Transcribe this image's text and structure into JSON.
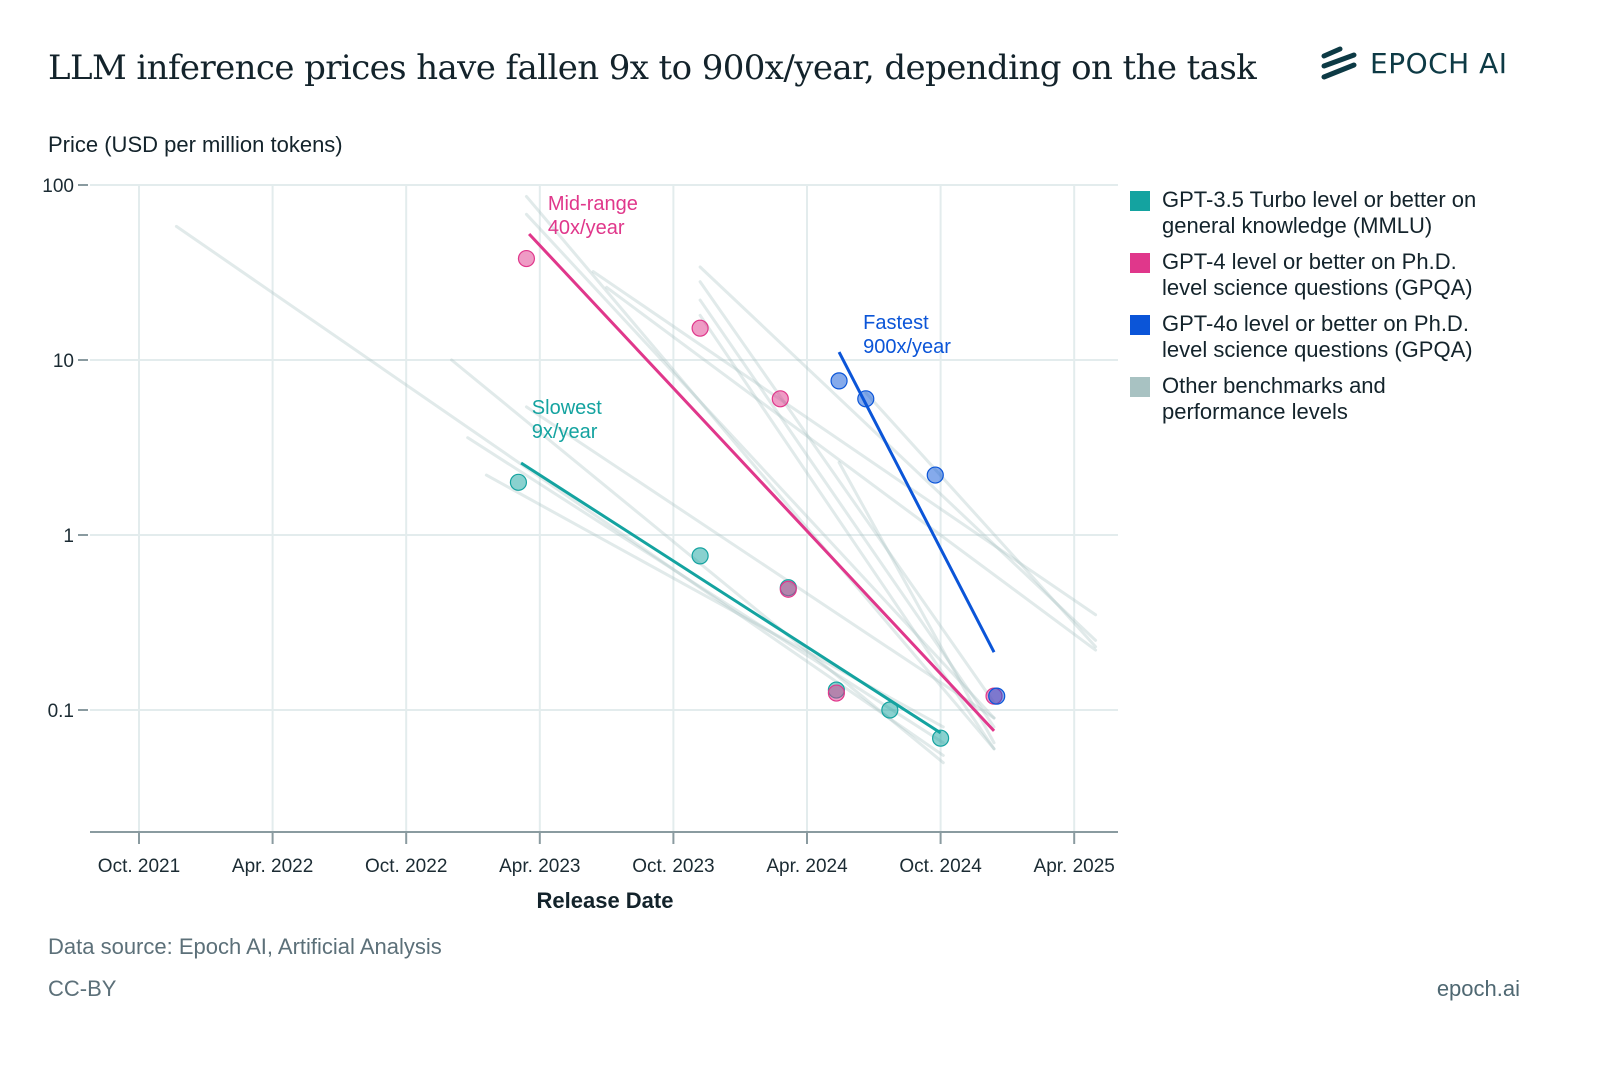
{
  "header": {
    "title": "LLM inference prices have fallen 9x to 900x/year, depending on the task",
    "logo_text": "EPOCH AI",
    "logo_icon": "epoch-slashes-icon"
  },
  "footer": {
    "source": "Data source: Epoch AI, Artificial Analysis",
    "license": "CC-BY",
    "site": "epoch.ai"
  },
  "colors": {
    "teal": "#14a3a0",
    "pink": "#e0378b",
    "blue": "#0b55d8",
    "gray": "#a8c2c2",
    "grid": "#e3eced",
    "axis": "#8a9ba0"
  },
  "chart_data": {
    "type": "scatter",
    "title": "LLM inference prices have fallen 9x to 900x/year, depending on the task",
    "xlabel": "Release Date",
    "ylabel": "Price (USD per million tokens)",
    "yscale": "log",
    "ylim": [
      0.02,
      100
    ],
    "xlim": [
      2021.57,
      2025.42
    ],
    "grid": true,
    "legend_position": "right",
    "x_ticks": [
      {
        "value": 2021.75,
        "label": "Oct. 2021"
      },
      {
        "value": 2022.25,
        "label": "Apr. 2022"
      },
      {
        "value": 2022.75,
        "label": "Oct. 2022"
      },
      {
        "value": 2023.25,
        "label": "Apr. 2023"
      },
      {
        "value": 2023.75,
        "label": "Oct. 2023"
      },
      {
        "value": 2024.25,
        "label": "Apr. 2024"
      },
      {
        "value": 2024.75,
        "label": "Oct. 2024"
      },
      {
        "value": 2025.25,
        "label": "Apr. 2025"
      }
    ],
    "y_ticks": [
      {
        "value": 100,
        "label": "100"
      },
      {
        "value": 10,
        "label": "10"
      },
      {
        "value": 1,
        "label": "1"
      },
      {
        "value": 0.1,
        "label": "0.1"
      }
    ],
    "series": [
      {
        "name": "GPT-3.5 Turbo level or better on general knowledge (MMLU)",
        "key": "teal",
        "color": "#14a3a0",
        "points": [
          {
            "x": 2023.17,
            "y": 2.0
          },
          {
            "x": 2023.85,
            "y": 0.76
          },
          {
            "x": 2024.18,
            "y": 0.5
          },
          {
            "x": 2024.36,
            "y": 0.13
          },
          {
            "x": 2024.56,
            "y": 0.1
          },
          {
            "x": 2024.75,
            "y": 0.069
          }
        ],
        "trend": {
          "x": [
            2023.18,
            2024.75
          ],
          "y": [
            2.58,
            0.074
          ]
        },
        "annotation": {
          "line1": "Slowest",
          "line2": "9x/year",
          "x": 2023.22,
          "y": 4.9
        }
      },
      {
        "name": "GPT-4 level or better on Ph.D. level science questions (GPQA)",
        "key": "pink",
        "color": "#e0378b",
        "points": [
          {
            "x": 2023.2,
            "y": 38
          },
          {
            "x": 2023.85,
            "y": 15.2
          },
          {
            "x": 2024.15,
            "y": 6.0
          },
          {
            "x": 2024.18,
            "y": 0.49
          },
          {
            "x": 2024.36,
            "y": 0.125
          },
          {
            "x": 2024.95,
            "y": 0.12
          }
        ],
        "trend": {
          "x": [
            2023.21,
            2024.95
          ],
          "y": [
            52.5,
            0.076
          ]
        },
        "annotation": {
          "line1": "Mid-range",
          "line2": "40x/year",
          "x": 2023.28,
          "y": 72
        }
      },
      {
        "name": "GPT-4o level or better on Ph.D. level science questions (GPQA)",
        "key": "blue",
        "color": "#0b55d8",
        "points": [
          {
            "x": 2024.37,
            "y": 7.6
          },
          {
            "x": 2024.47,
            "y": 6.0
          },
          {
            "x": 2024.73,
            "y": 2.2
          },
          {
            "x": 2024.96,
            "y": 0.12
          }
        ],
        "trend": {
          "x": [
            2024.37,
            2024.95
          ],
          "y": [
            11.1,
            0.214
          ]
        },
        "annotation": {
          "line1": "Fastest",
          "line2": "900x/year",
          "x": 2024.46,
          "y": 15
        }
      },
      {
        "name": "Other benchmarks and performance levels",
        "key": "gray",
        "color": "#a8c2c2",
        "points": [],
        "trends": [
          {
            "x": [
              2021.89,
              2024.76
            ],
            "y": [
              58,
              0.055
            ]
          },
          {
            "x": [
              2022.92,
              2024.76
            ],
            "y": [
              10,
              0.05
            ]
          },
          {
            "x": [
              2023.2,
              2024.95
            ],
            "y": [
              86,
              0.06
            ]
          },
          {
            "x": [
              2023.2,
              2024.95
            ],
            "y": [
              68,
              0.09
            ]
          },
          {
            "x": [
              2023.2,
              2024.95
            ],
            "y": [
              5.4,
              0.09
            ]
          },
          {
            "x": [
              2023.45,
              2025.33
            ],
            "y": [
              32,
              0.35
            ]
          },
          {
            "x": [
              2023.5,
              2025.33
            ],
            "y": [
              26,
              0.22
            ]
          },
          {
            "x": [
              2023.85,
              2025.33
            ],
            "y": [
              34,
              0.25
            ]
          },
          {
            "x": [
              2023.85,
              2024.95
            ],
            "y": [
              28,
              0.11
            ]
          },
          {
            "x": [
              2023.85,
              2024.95
            ],
            "y": [
              22,
              0.08
            ]
          },
          {
            "x": [
              2023.85,
              2024.95
            ],
            "y": [
              18,
              0.06
            ]
          },
          {
            "x": [
              2024.37,
              2024.95
            ],
            "y": [
              2.6,
              0.065
            ]
          },
          {
            "x": [
              2023.05,
              2024.76
            ],
            "y": [
              2.2,
              0.08
            ]
          },
          {
            "x": [
              2022.98,
              2024.76
            ],
            "y": [
              3.6,
              0.065
            ]
          },
          {
            "x": [
              2024.47,
              2025.33
            ],
            "y": [
              6.5,
              0.23
            ]
          }
        ]
      }
    ]
  },
  "legend": {
    "items": [
      {
        "line1": "GPT-3.5 Turbo level or better on",
        "line2": "general knowledge (MMLU)",
        "color": "#14a3a0"
      },
      {
        "line1": "GPT-4 level or better on Ph.D.",
        "line2": "level science questions (GPQA)",
        "color": "#e0378b"
      },
      {
        "line1": "GPT-4o level or better on Ph.D.",
        "line2": "level science questions (GPQA)",
        "color": "#0b55d8"
      },
      {
        "line1": "Other benchmarks and",
        "line2": "performance levels",
        "color": "#a8c2c2"
      }
    ]
  }
}
